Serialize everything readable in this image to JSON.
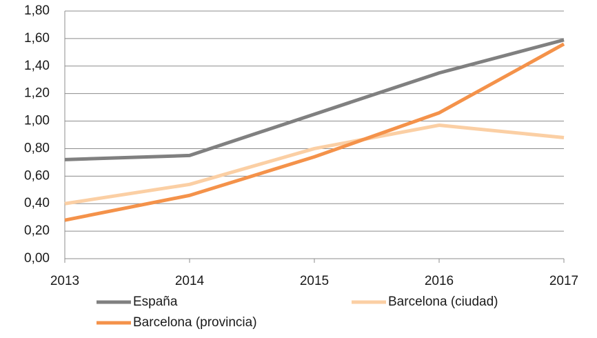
{
  "chart_data": {
    "type": "line",
    "categories": [
      "2013",
      "2014",
      "2015",
      "2016",
      "2017"
    ],
    "series": [
      {
        "name": "España",
        "color": "#808080",
        "values": [
          0.72,
          0.75,
          1.05,
          1.35,
          1.59
        ]
      },
      {
        "name": "Barcelona (ciudad)",
        "color": "#fbcfa4",
        "values": [
          0.4,
          0.54,
          0.8,
          0.97,
          0.88
        ]
      },
      {
        "name": "Barcelona (provincia)",
        "color": "#f4924a",
        "values": [
          0.28,
          0.46,
          0.74,
          1.06,
          1.56
        ]
      }
    ],
    "ylim": [
      0,
      1.8
    ],
    "yticks": [
      {
        "value": 0,
        "label": "0,00"
      },
      {
        "value": 0.2,
        "label": "0,20"
      },
      {
        "value": 0.4,
        "label": "0,40"
      },
      {
        "value": 0.6,
        "label": "0,60"
      },
      {
        "value": 0.8,
        "label": "0,80"
      },
      {
        "value": 1.0,
        "label": "1,00"
      },
      {
        "value": 1.2,
        "label": "1,20"
      },
      {
        "value": 1.4,
        "label": "1,40"
      },
      {
        "value": 1.6,
        "label": "1,60"
      },
      {
        "value": 1.8,
        "label": "1,80"
      }
    ],
    "grid": true
  }
}
